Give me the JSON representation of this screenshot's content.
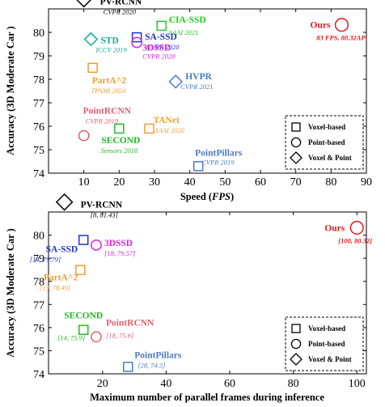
{
  "chart_data": [
    {
      "type": "scatter",
      "title": "",
      "xlabel_pre": "Speed (",
      "xlabel_em": "FPS",
      "xlabel_post": ")",
      "ylabel": "Accuracy (3D Moderate Car )",
      "xlim": [
        0,
        90
      ],
      "ylim": [
        74,
        81
      ],
      "xticks": [
        10,
        20,
        30,
        40,
        50,
        60,
        70,
        80,
        90
      ],
      "yticks": [
        74,
        75,
        76,
        77,
        78,
        79,
        80
      ],
      "legend": {
        "position": "bottom-right",
        "entries": [
          {
            "label": "Voxel-based",
            "marker": "square"
          },
          {
            "label": "Point-based",
            "marker": "circle"
          },
          {
            "label": "Voxel & Point",
            "marker": "diamond"
          }
        ]
      },
      "points": [
        {
          "name": "PV-RCNN",
          "venue": "CVPR 2020",
          "x": 10,
          "y": 81.43,
          "marker": "diamond",
          "color": "#000000"
        },
        {
          "name": "CIA-SSD",
          "venue": "AAAI 2021",
          "x": 32,
          "y": 80.28,
          "marker": "square",
          "color": "#22cc22"
        },
        {
          "name": "Ours",
          "venue": "83 FPS, 80.32AP",
          "x": 83,
          "y": 80.32,
          "marker": "circle",
          "color": "#e8191e"
        },
        {
          "name": "SA-SSD",
          "venue": "CVPR 2020",
          "x": 25,
          "y": 79.79,
          "marker": "square",
          "color": "#2233cc"
        },
        {
          "name": "STD",
          "venue": "ICCV 2019",
          "x": 12,
          "y": 79.71,
          "marker": "diamond",
          "color": "#11aa99"
        },
        {
          "name": "3DSSD",
          "venue": "CVPR 2020",
          "x": 25,
          "y": 79.57,
          "marker": "circle",
          "color": "#dd22dd"
        },
        {
          "name": "PartA^2",
          "venue": "TPAMI 2020",
          "x": 12.5,
          "y": 78.49,
          "marker": "square",
          "color": "#f0a030"
        },
        {
          "name": "HVPR",
          "venue": "CVPR 2021",
          "x": 36,
          "y": 77.9,
          "marker": "diamond",
          "color": "#4a7bc4"
        },
        {
          "name": "PointRCNN",
          "venue": "CVPR 2019",
          "x": 10,
          "y": 75.6,
          "marker": "circle",
          "color": "#e06070"
        },
        {
          "name": "SECOND",
          "venue": "Sensors 2018",
          "x": 20,
          "y": 75.9,
          "marker": "square",
          "color": "#22bb22"
        },
        {
          "name": "TANet",
          "venue": "AAAI 2020",
          "x": 28.5,
          "y": 75.9,
          "marker": "square",
          "color": "#f0a030"
        },
        {
          "name": "PointPillars",
          "venue": "CVPR 2019",
          "x": 42.4,
          "y": 74.3,
          "marker": "square",
          "color": "#4a7bc4"
        }
      ]
    },
    {
      "type": "scatter",
      "title": "",
      "xlabel": "Maximum number of parallel frames during inference",
      "ylabel": "Accuracy (3D Moderate Car )",
      "xlim": [
        3,
        103
      ],
      "ylim": [
        74,
        81
      ],
      "xticks": [
        20,
        40,
        60,
        80,
        100
      ],
      "yticks": [
        74,
        75,
        76,
        77,
        78,
        79,
        80
      ],
      "legend": {
        "position": "bottom-right",
        "entries": [
          {
            "label": "Voxel-based",
            "marker": "square"
          },
          {
            "label": "Point-based",
            "marker": "circle"
          },
          {
            "label": "Voxel & Point",
            "marker": "diamond"
          }
        ]
      },
      "points": [
        {
          "name": "PV-RCNN",
          "note": "[8, 81.43]",
          "x": 8,
          "y": 81.43,
          "marker": "diamond",
          "color": "#000000"
        },
        {
          "name": "Ours",
          "note": "[100, 80.32]",
          "x": 100,
          "y": 80.32,
          "marker": "circle",
          "color": "#e8191e"
        },
        {
          "name": "SA-SSD",
          "note": "[14, 79.79]",
          "x": 14,
          "y": 79.79,
          "marker": "square",
          "color": "#2233cc"
        },
        {
          "name": "3DSSD",
          "note": "[18, 79.57]",
          "x": 18,
          "y": 79.57,
          "marker": "circle",
          "color": "#dd22dd"
        },
        {
          "name": "PartA^2",
          "note": "[13, 78.49]",
          "x": 13,
          "y": 78.49,
          "marker": "square",
          "color": "#f0a030"
        },
        {
          "name": "SECOND",
          "note": "[14, 75.9]",
          "x": 14,
          "y": 75.9,
          "marker": "square",
          "color": "#22bb22"
        },
        {
          "name": "PointRCNN",
          "note": "[18, 75.6]",
          "x": 18,
          "y": 75.6,
          "marker": "circle",
          "color": "#e06070"
        },
        {
          "name": "PointPillars",
          "note": "[28, 74.3]",
          "x": 28,
          "y": 74.3,
          "marker": "square",
          "color": "#4a7bc4"
        }
      ]
    }
  ]
}
